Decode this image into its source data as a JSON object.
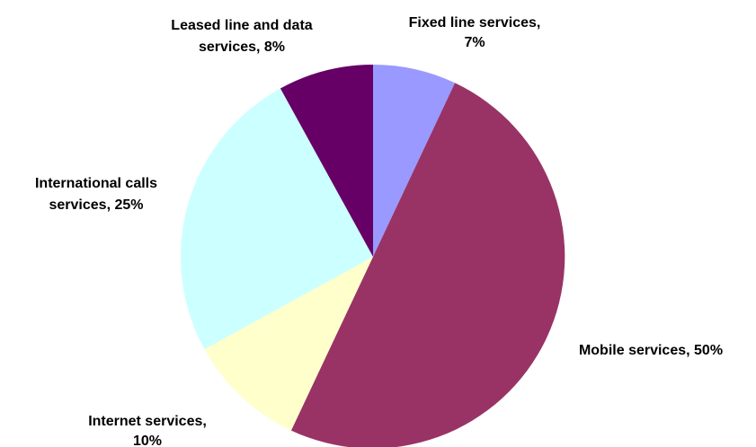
{
  "chart_data": {
    "type": "pie",
    "slices": [
      {
        "label": "Fixed line services",
        "value": 7,
        "color": "#9999FF",
        "label_lines": [
          "Fixed line services,",
          "7%"
        ]
      },
      {
        "label": "Mobile services",
        "value": 50,
        "color": "#993366",
        "label_lines": [
          "Mobile services, 50%"
        ]
      },
      {
        "label": "Internet services",
        "value": 10,
        "color": "#FFFFCC",
        "label_lines": [
          "Internet services,",
          "10%"
        ]
      },
      {
        "label": "International calls services",
        "value": 25,
        "color": "#CCFFFF",
        "label_lines": [
          "International calls",
          "services, 25%"
        ]
      },
      {
        "label": "Leased line and data services",
        "value": 8,
        "color": "#660066",
        "label_lines": [
          "Leased line and data",
          "services, 8%"
        ]
      }
    ]
  }
}
